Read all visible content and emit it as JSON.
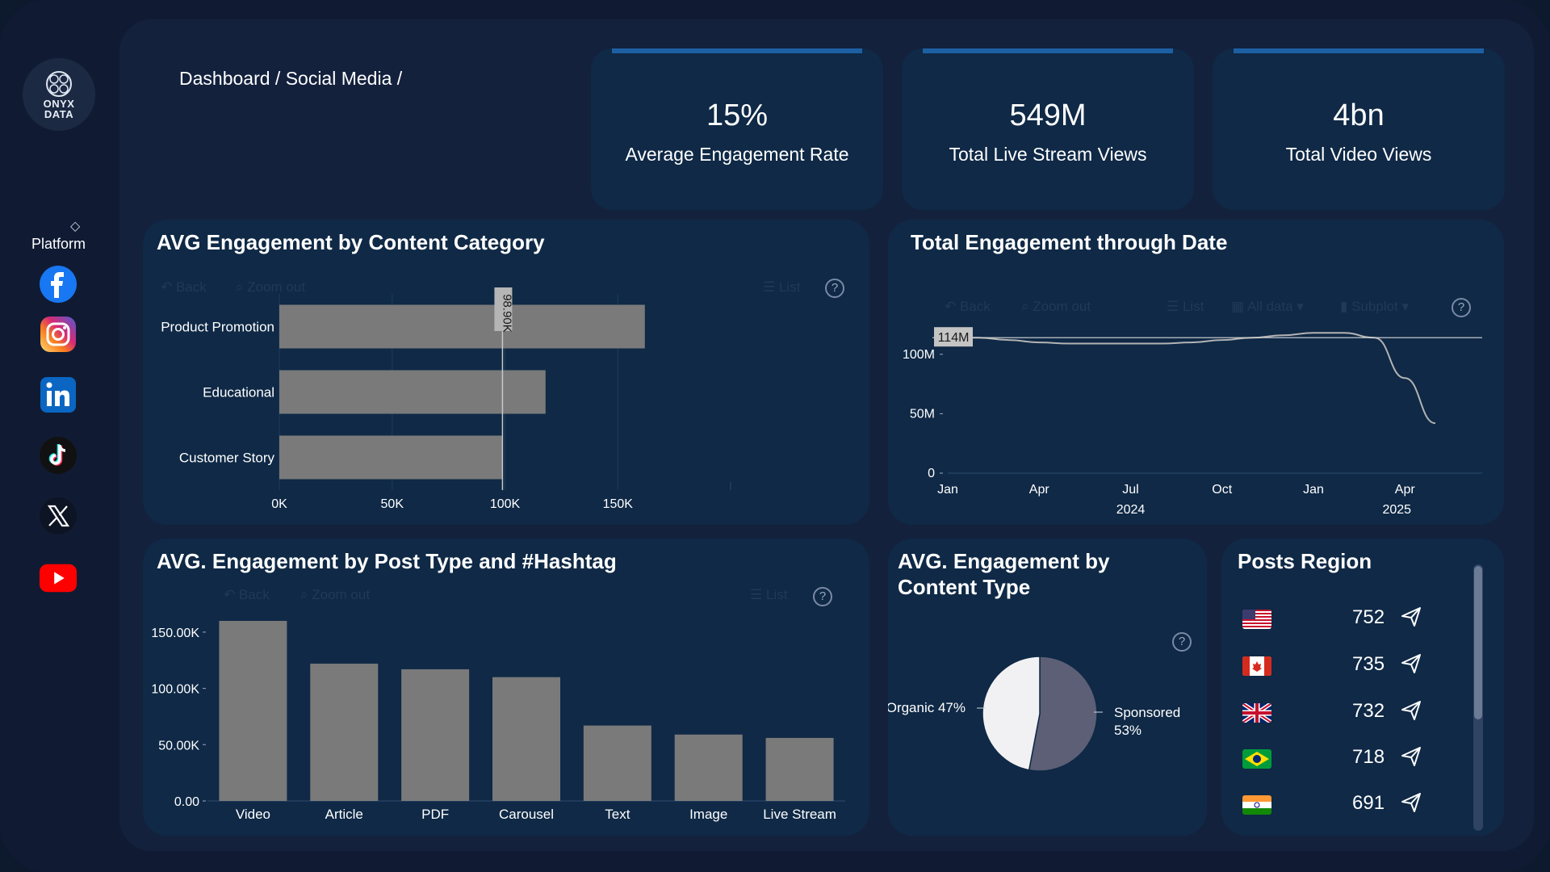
{
  "brand": {
    "logo_line1": "ONYX",
    "logo_line2": "DATA"
  },
  "breadcrumb": "Dashboard / Social Media /",
  "sidebar": {
    "filter_label": "Platform",
    "platforms": [
      "facebook",
      "instagram",
      "linkedin",
      "tiktok",
      "x",
      "youtube"
    ]
  },
  "kpis": [
    {
      "value": "15%",
      "label": "Average Engagement Rate"
    },
    {
      "value": "549M",
      "label": "Total Live Stream Views"
    },
    {
      "value": "4bn",
      "label": "Total Video Views"
    }
  ],
  "visual_toolbar": {
    "back": "Back",
    "zoom_out": "Zoom out",
    "list": "List",
    "all_data": "All data",
    "subplot": "Subplot"
  },
  "panels": {
    "category": {
      "title": "AVG Engagement by Content Category",
      "chart_data": {
        "type": "bar",
        "orientation": "horizontal",
        "categories": [
          "Product Promotion",
          "Educational",
          "Customer Story"
        ],
        "values": [
          162000,
          118000,
          98900
        ],
        "xlim": [
          0,
          200000
        ],
        "xticks": [
          0,
          50000,
          100000,
          150000
        ],
        "xtick_labels": [
          "0K",
          "50K",
          "100K",
          "150K"
        ],
        "reference_line": {
          "value": 98900,
          "label": "98.90K"
        }
      }
    },
    "timeline": {
      "title": "Total Engagement through Date",
      "chart_data": {
        "type": "line",
        "x": [
          "2024-01",
          "2024-02",
          "2024-03",
          "2024-04",
          "2024-05",
          "2024-06",
          "2024-07",
          "2024-08",
          "2024-09",
          "2024-10",
          "2024-11",
          "2024-12",
          "2025-01",
          "2025-02",
          "2025-03",
          "2025-04",
          "2025-05"
        ],
        "values": [
          114,
          114,
          112,
          110,
          109,
          109,
          109,
          109,
          110,
          112,
          114,
          116,
          118,
          118,
          114,
          80,
          42
        ],
        "unit": "M",
        "ylim": [
          0,
          125
        ],
        "yticks": [
          0,
          50,
          100
        ],
        "ytick_labels": [
          "0",
          "50M",
          "100M"
        ],
        "xtick_labels": [
          "Jan",
          "Apr",
          "Jul",
          "Oct",
          "Jan",
          "Apr"
        ],
        "year_labels": [
          "2024",
          "2025"
        ],
        "reference_line": {
          "value": 114,
          "label": "114M"
        }
      }
    },
    "post_type": {
      "title": "AVG. Engagement by Post Type and #Hashtag",
      "chart_data": {
        "type": "bar",
        "categories": [
          "Video",
          "Article",
          "PDF",
          "Carousel",
          "Text",
          "Image",
          "Live Stream"
        ],
        "values": [
          160000,
          122000,
          117000,
          110000,
          67000,
          59000,
          56000
        ],
        "ylim": [
          0,
          165000
        ],
        "yticks": [
          0,
          50000,
          100000,
          150000
        ],
        "ytick_labels": [
          "0.00",
          "50.00K",
          "100.00K",
          "150.00K"
        ]
      }
    },
    "content_type": {
      "title_line1": "AVG. Engagement by",
      "title_line2": "Content Type",
      "chart_data": {
        "type": "pie",
        "slices": [
          {
            "name": "Sponsored",
            "value": 53,
            "label_line1": "Sponsored",
            "label_line2": "53%",
            "color": "#5c5f75"
          },
          {
            "name": "Organic",
            "value": 47,
            "label_line1": "Organic 47%",
            "color": "#f1f1f3"
          }
        ]
      }
    },
    "regions": {
      "title": "Posts Region",
      "items": [
        {
          "country": "United States",
          "value": "752"
        },
        {
          "country": "Canada",
          "value": "735"
        },
        {
          "country": "United Kingdom",
          "value": "732"
        },
        {
          "country": "Brazil",
          "value": "718"
        },
        {
          "country": "India",
          "value": "691"
        }
      ]
    }
  },
  "colors": {
    "bar": "#7a7a7a",
    "panel": "#0f2946",
    "kpi_accent": "#1d5fa3"
  }
}
